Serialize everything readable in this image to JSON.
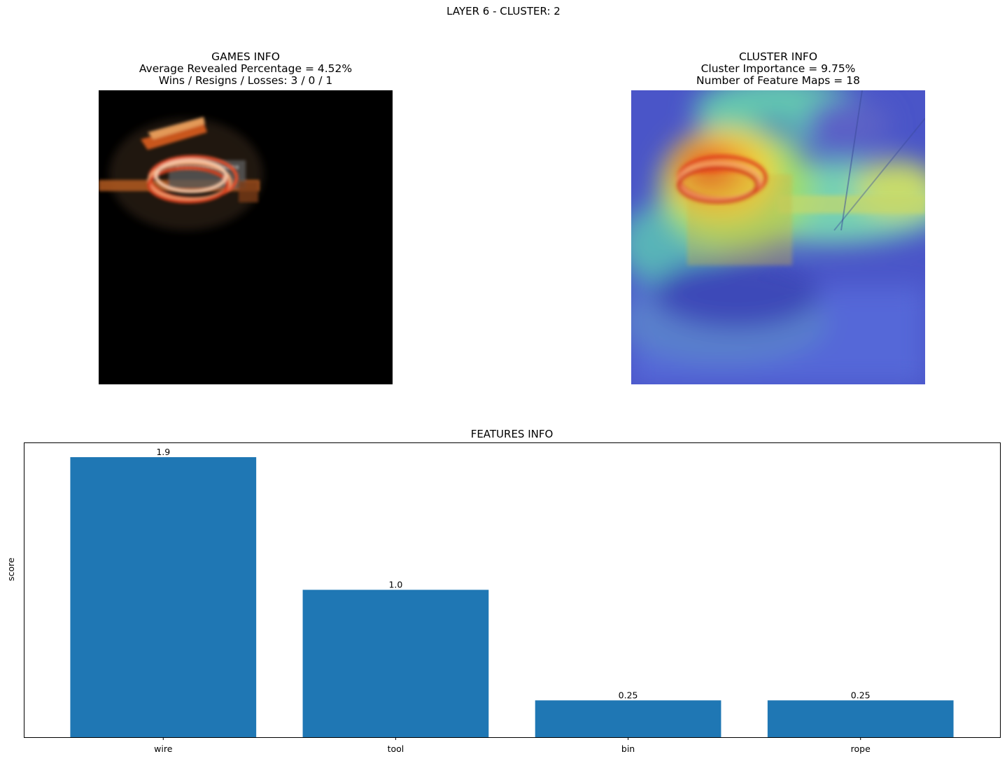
{
  "figure": {
    "suptitle": "LAYER 6 - CLUSTER: 2"
  },
  "games_panel": {
    "title": "GAMES INFO",
    "line1": "Average Revealed Percentage = 4.52%",
    "line2": "Wins / Resigns / Losses: 3 / 0 / 1",
    "image_icon": "masked-chainsaw-image"
  },
  "cluster_panel": {
    "title": "CLUSTER INFO",
    "line1": "Cluster Importance = 9.75%",
    "line2": "Number of Feature Maps = 18",
    "image_icon": "chainsaw-heatmap-image"
  },
  "chart_data": {
    "type": "bar",
    "title": "FEATURES INFO",
    "xlabel": "",
    "ylabel": "score",
    "categories": [
      "wire",
      "tool",
      "bin",
      "rope"
    ],
    "values": [
      1.9,
      1.0,
      0.25,
      0.25
    ],
    "value_labels": [
      "1.9",
      "1.0",
      "0.25",
      "0.25"
    ],
    "ylim": [
      0,
      1.995
    ],
    "grid": false,
    "yticks_visible": false,
    "bar_color": "#1f77b4"
  }
}
